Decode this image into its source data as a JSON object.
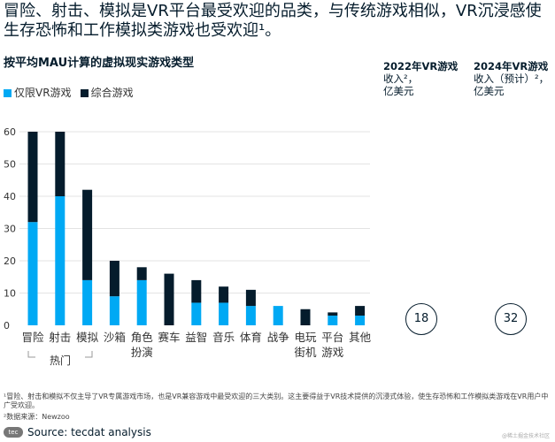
{
  "title": "冒险、射击、模拟是VR平台最受欢迎的品类，与传统游戏相似，VR沉浸感使生存恐怖和工作模拟类游戏也受欢迎¹。",
  "subtitle": "按平均MAU计算的虚拟现实游戏类型",
  "legend": [
    {
      "label": "仅限VR游戏",
      "color": "#00a9f4"
    },
    {
      "label": "综合游戏",
      "color": "#051c2c"
    }
  ],
  "columns": [
    {
      "head": "2022年VR游戏",
      "sub": "收入²，",
      "unit": "亿美元",
      "value": "18"
    },
    {
      "head": "2024年VR游戏",
      "sub": "收入（预计）²，",
      "unit": "亿美元",
      "value": "32"
    }
  ],
  "chart_data": {
    "type": "bar",
    "stacked": true,
    "categories": [
      "冒险",
      "射击",
      "模拟",
      "沙箱",
      "角色\n扮演",
      "赛车",
      "益智",
      "音乐",
      "体育",
      "战争",
      "电玩\n街机",
      "平台\n游戏",
      "其他"
    ],
    "series": [
      {
        "name": "仅限VR游戏",
        "color": "#00a9f4",
        "values": [
          32,
          40,
          14,
          9,
          14,
          0,
          7,
          7,
          6,
          6,
          0,
          3,
          3
        ]
      },
      {
        "name": "综合游戏",
        "color": "#051c2c",
        "values": [
          28,
          20,
          28,
          11,
          4,
          16,
          7,
          5,
          5,
          0,
          5,
          1,
          3
        ]
      }
    ],
    "yticks": [
      0,
      10,
      20,
      30,
      40,
      50,
      60
    ],
    "ylim": [
      0,
      60
    ],
    "grid": true,
    "group_label": "热门"
  },
  "footnotes": [
    "¹冒险、射击和模拟不仅主导了VR专属游戏市场，也是VR兼容游戏中最受欢迎的三大类别。这主要得益于VR技术提供的沉浸式体验，使生存恐怖和工作模拟类游戏在VR用户中广受欢迎。",
    "²数据来源：Newzoo"
  ],
  "source": "Source: tecdat analysis",
  "logo": "tecdat",
  "watermark": "@稀土掘金技术社区"
}
